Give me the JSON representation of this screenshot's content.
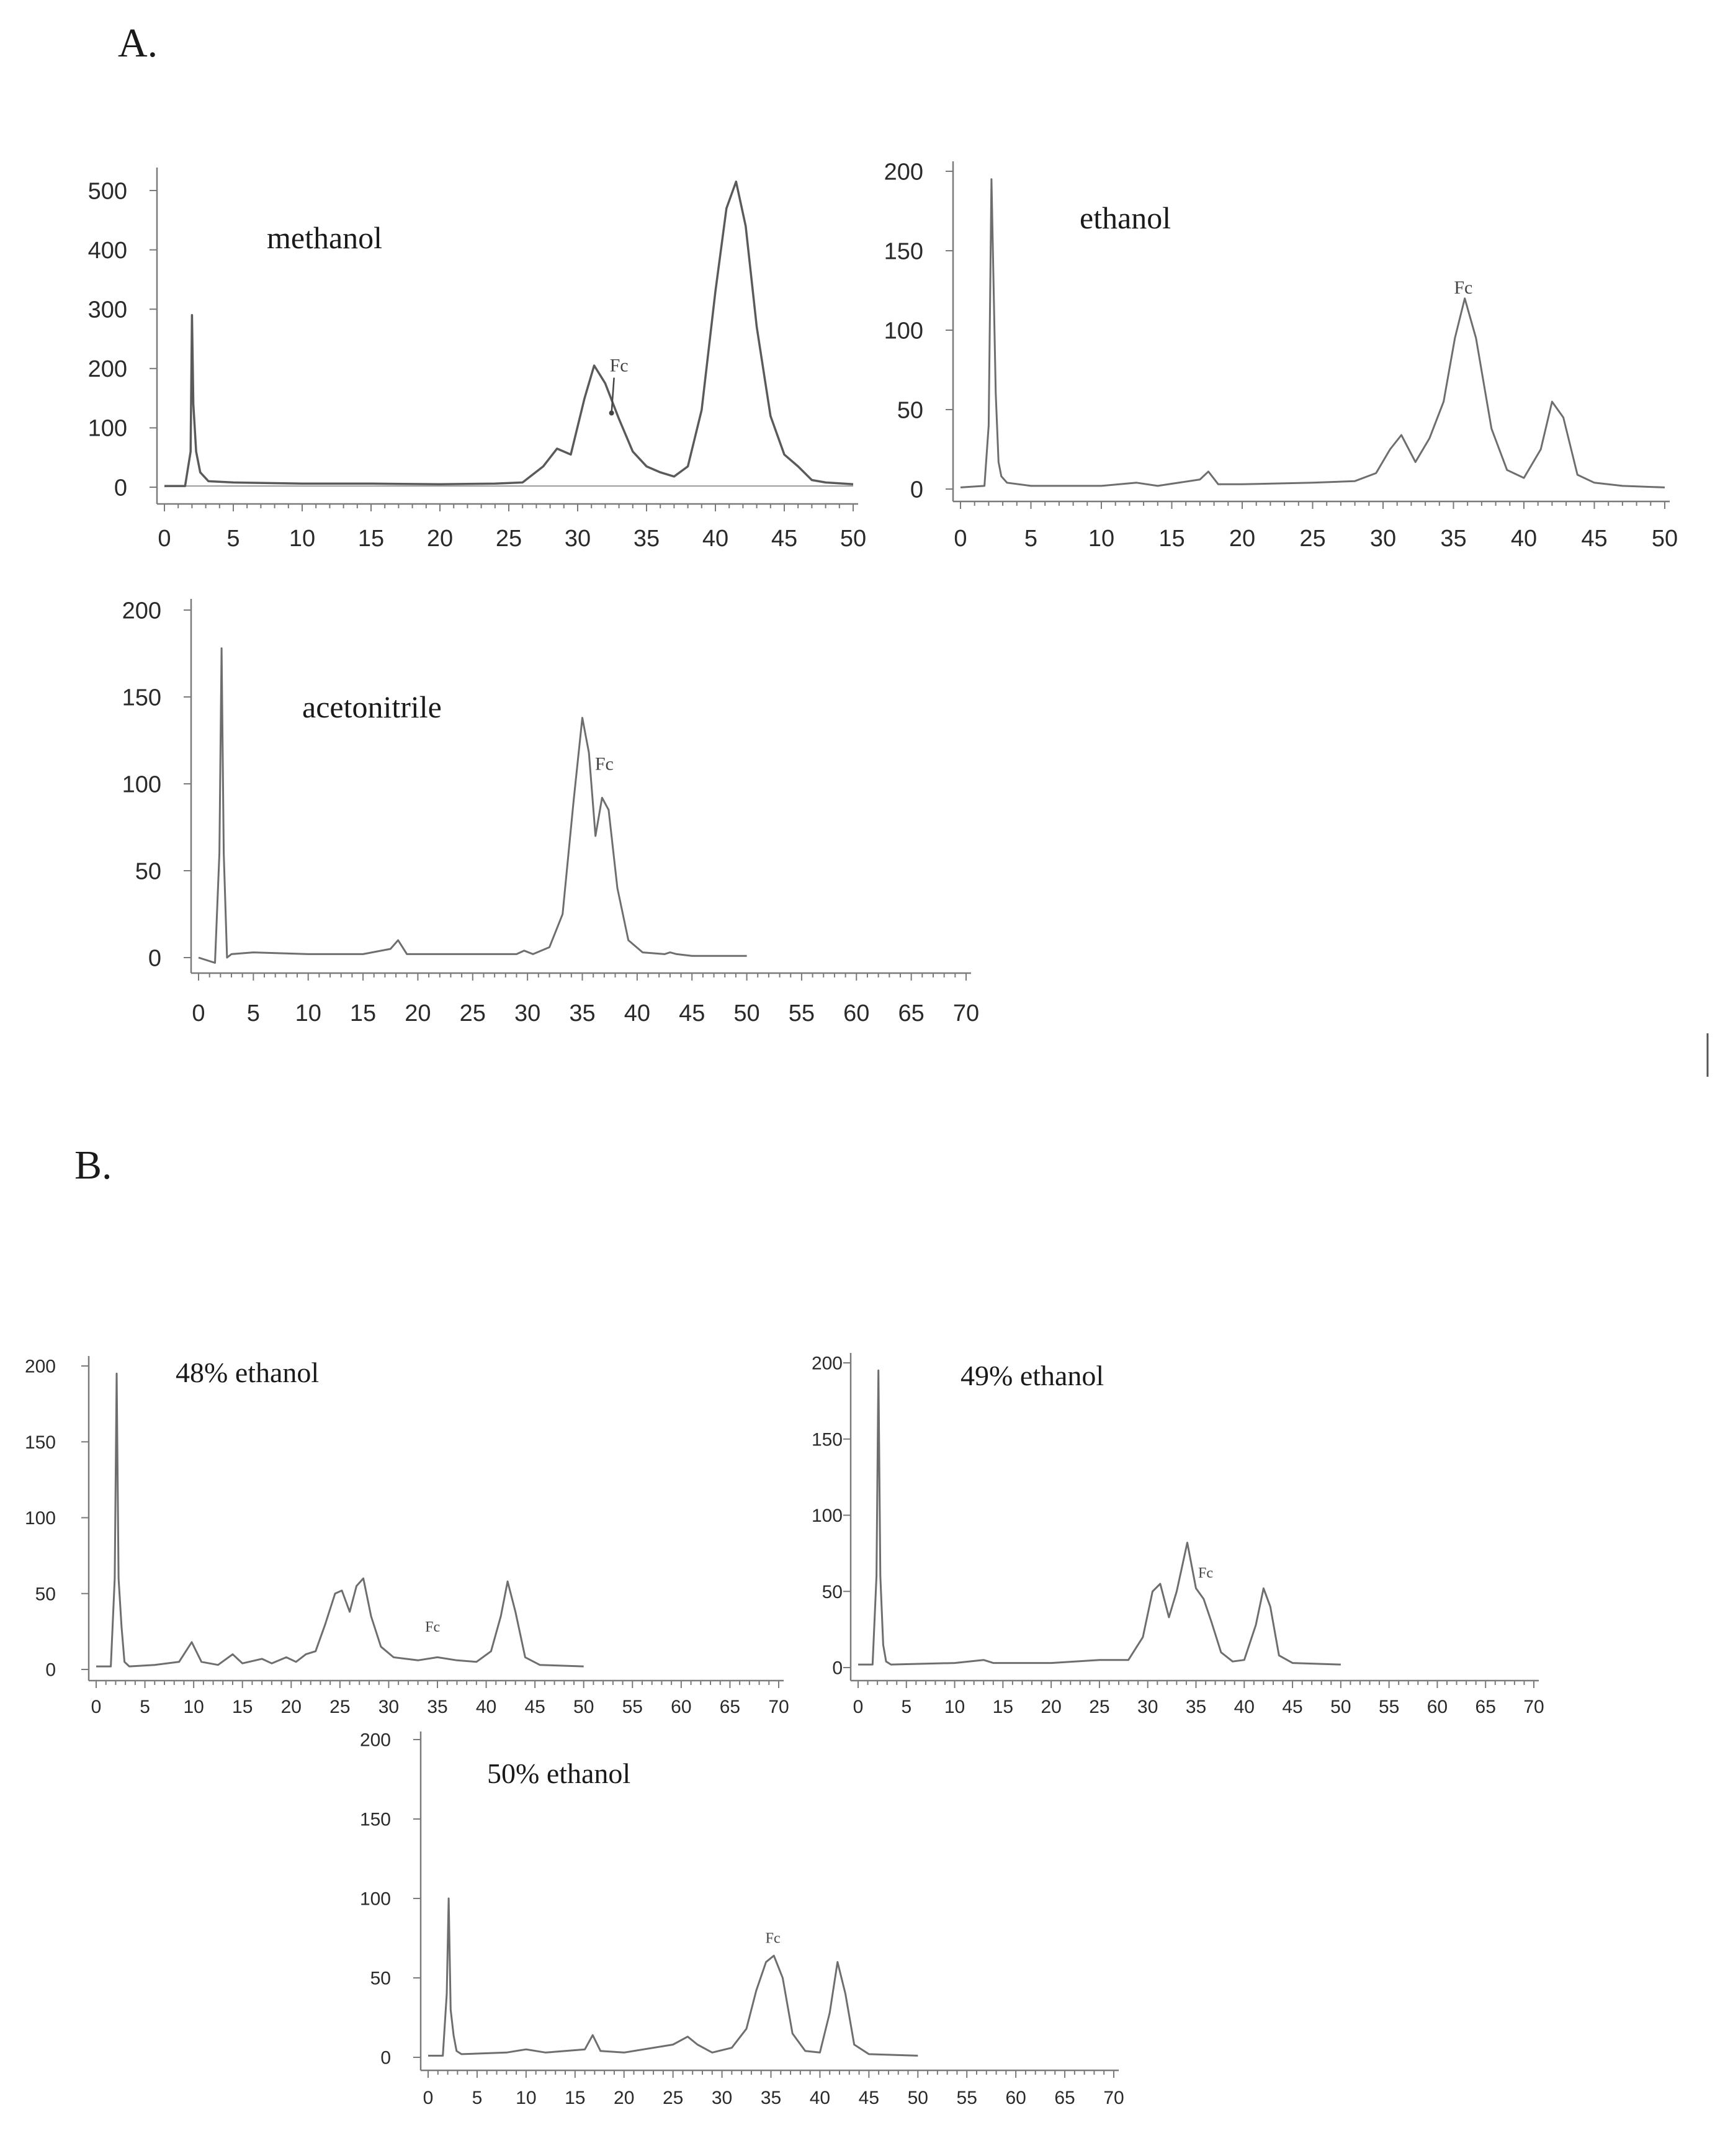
{
  "panel_labels": {
    "a": "A.",
    "b": "B."
  },
  "chart_data": [
    {
      "type": "line",
      "group": "A",
      "title": "methanol",
      "xlim": [
        0,
        50
      ],
      "ylim": [
        -20,
        550
      ],
      "xticks": [
        0,
        5,
        10,
        15,
        20,
        25,
        30,
        35,
        40,
        45,
        50
      ],
      "yticks": [
        0,
        100,
        200,
        300,
        400,
        500
      ],
      "annotation": {
        "text": "Fc",
        "x": 33,
        "y": 195,
        "arrow_to_y": 125
      },
      "x": [
        0,
        1.5,
        1.9,
        2.0,
        2.1,
        2.3,
        2.6,
        3.2,
        5,
        10,
        15,
        20,
        24,
        26,
        27.5,
        28.5,
        29.5,
        30.5,
        31.2,
        32,
        33,
        34,
        35,
        36,
        37,
        38,
        39,
        40,
        40.8,
        41.5,
        42.2,
        43,
        44,
        45,
        46,
        47,
        48,
        50
      ],
      "values": [
        2,
        2,
        60,
        290,
        140,
        60,
        25,
        10,
        8,
        6,
        6,
        5,
        6,
        8,
        35,
        65,
        55,
        150,
        205,
        175,
        115,
        60,
        35,
        25,
        18,
        35,
        130,
        330,
        470,
        515,
        440,
        270,
        120,
        55,
        35,
        12,
        8,
        5
      ]
    },
    {
      "type": "line",
      "group": "A",
      "title": "ethanol",
      "xlim": [
        0,
        50
      ],
      "ylim": [
        -5,
        210
      ],
      "xticks": [
        0,
        5,
        10,
        15,
        20,
        25,
        30,
        35,
        40,
        45,
        50
      ],
      "yticks": [
        0,
        50,
        100,
        150,
        200
      ],
      "annotation": {
        "text": "Fc",
        "x": 35.7,
        "y": 123
      },
      "x": [
        0,
        1.7,
        2.0,
        2.2,
        2.5,
        2.7,
        2.9,
        3.3,
        5,
        10,
        12.5,
        14,
        17,
        17.6,
        18.3,
        20,
        25,
        28,
        29.5,
        30.5,
        31.3,
        32.3,
        33.3,
        34.3,
        35.1,
        35.8,
        36.6,
        37.7,
        38.8,
        40,
        41.2,
        42,
        42.8,
        43.8,
        45,
        47,
        50
      ],
      "values": [
        1,
        2,
        40,
        195,
        60,
        17,
        8,
        4,
        2,
        2,
        4,
        2,
        6,
        11,
        3,
        3,
        4,
        5,
        10,
        25,
        34,
        17,
        32,
        55,
        95,
        120,
        95,
        38,
        12,
        7,
        25,
        55,
        45,
        9,
        4,
        2,
        1
      ]
    },
    {
      "type": "line",
      "group": "A",
      "title": "acetonitrile",
      "xlim": [
        0,
        70
      ],
      "ylim": [
        -5,
        205
      ],
      "xticks": [
        0,
        5,
        10,
        15,
        20,
        25,
        30,
        35,
        40,
        45,
        50,
        55,
        60,
        65,
        70
      ],
      "yticks": [
        0,
        50,
        100,
        150,
        200
      ],
      "annotation": {
        "text": "Fc",
        "x": 37,
        "y": 108
      },
      "x": [
        0,
        1.5,
        1.9,
        2.1,
        2.3,
        2.6,
        3,
        5,
        10,
        15,
        17.5,
        18.2,
        19,
        25,
        29,
        29.7,
        30.5,
        32,
        33.2,
        34.2,
        35,
        35.6,
        36.2,
        36.8,
        37.4,
        38.2,
        39.2,
        40.5,
        42.5,
        43,
        43.6,
        45,
        50
      ],
      "values": [
        0,
        -3,
        60,
        178,
        60,
        0,
        2,
        3,
        2,
        2,
        5,
        10,
        2,
        2,
        2,
        4,
        2,
        6,
        25,
        90,
        138,
        118,
        70,
        92,
        85,
        40,
        10,
        3,
        2,
        3,
        2,
        1,
        1
      ]
    },
    {
      "type": "line",
      "group": "B",
      "title": "48% ethanol",
      "xlim": [
        0,
        70
      ],
      "ylim": [
        -5,
        205
      ],
      "xticks": [
        0,
        5,
        10,
        15,
        20,
        25,
        30,
        35,
        40,
        45,
        50,
        55,
        60,
        65,
        70
      ],
      "yticks": [
        0,
        50,
        100,
        150,
        200
      ],
      "annotation": {
        "text": "Fc",
        "x": 34.5,
        "y": 25
      },
      "x": [
        0,
        1.5,
        1.9,
        2.1,
        2.3,
        2.6,
        2.9,
        3.4,
        6,
        8.5,
        9.8,
        10.8,
        12.5,
        14,
        15,
        17,
        18,
        19.5,
        20.5,
        21.5,
        22.5,
        23.5,
        24.5,
        25.2,
        26,
        26.7,
        27.4,
        28.2,
        29.2,
        30.5,
        33,
        35,
        37,
        39,
        40.5,
        41.5,
        42.2,
        43,
        44,
        45.5,
        50
      ],
      "values": [
        2,
        2,
        60,
        195,
        60,
        28,
        5,
        2,
        3,
        5,
        18,
        5,
        3,
        10,
        4,
        7,
        4,
        8,
        5,
        10,
        12,
        30,
        50,
        52,
        38,
        55,
        60,
        35,
        15,
        8,
        6,
        8,
        6,
        5,
        12,
        35,
        58,
        38,
        8,
        3,
        2
      ]
    },
    {
      "type": "line",
      "group": "B",
      "title": "49% ethanol",
      "xlim": [
        0,
        70
      ],
      "ylim": [
        -5,
        205
      ],
      "xticks": [
        0,
        5,
        10,
        15,
        20,
        25,
        30,
        35,
        40,
        45,
        50,
        55,
        60,
        65,
        70
      ],
      "yticks": [
        0,
        50,
        100,
        150,
        200
      ],
      "annotation": {
        "text": "Fc",
        "x": 36,
        "y": 59
      },
      "x": [
        0,
        1.5,
        1.9,
        2.1,
        2.3,
        2.6,
        2.9,
        3.4,
        10,
        13,
        14,
        20,
        25,
        28,
        29.5,
        30.5,
        31.3,
        32.2,
        33,
        34.1,
        35,
        35.8,
        36.6,
        37.6,
        38.8,
        40,
        41.2,
        42,
        42.7,
        43.6,
        45,
        50
      ],
      "values": [
        2,
        2,
        60,
        195,
        60,
        15,
        4,
        2,
        3,
        5,
        3,
        3,
        5,
        5,
        20,
        50,
        55,
        33,
        50,
        82,
        52,
        45,
        30,
        10,
        4,
        5,
        28,
        52,
        40,
        8,
        3,
        2
      ]
    },
    {
      "type": "line",
      "group": "B",
      "title": "50% ethanol",
      "xlim": [
        0,
        70
      ],
      "ylim": [
        -5,
        205
      ],
      "xticks": [
        0,
        5,
        10,
        15,
        20,
        25,
        30,
        35,
        40,
        45,
        50,
        55,
        60,
        65,
        70
      ],
      "yticks": [
        0,
        50,
        100,
        150,
        200
      ],
      "annotation": {
        "text": "Fc",
        "x": 35.2,
        "y": 72
      },
      "x": [
        0,
        1.5,
        1.9,
        2.1,
        2.3,
        2.6,
        2.9,
        3.4,
        8,
        10,
        12,
        16,
        16.8,
        17.6,
        20,
        25,
        26.5,
        27.5,
        29,
        31,
        32.5,
        33.5,
        34.5,
        35.3,
        36.2,
        37.2,
        38.5,
        40,
        41,
        41.8,
        42.6,
        43.5,
        45,
        50
      ],
      "values": [
        1,
        1,
        40,
        100,
        30,
        14,
        4,
        2,
        3,
        5,
        3,
        5,
        14,
        4,
        3,
        8,
        13,
        8,
        3,
        6,
        18,
        42,
        60,
        64,
        50,
        15,
        4,
        3,
        28,
        60,
        40,
        8,
        2,
        1
      ]
    }
  ]
}
